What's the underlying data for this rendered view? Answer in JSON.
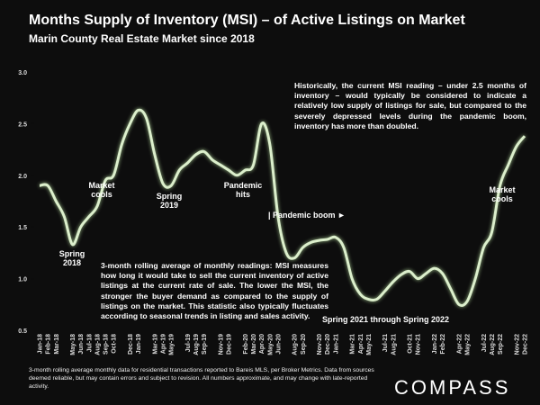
{
  "chart_data": {
    "type": "line",
    "title": "Months Supply of Inventory (MSI) – of Active Listings on Market",
    "subtitle": "Marin County Real Estate Market since 2018",
    "categories": [
      "Jan-18",
      "Feb-18",
      "Mar-18",
      null,
      "May-18",
      "Jun-18",
      "Jul-18",
      "Aug-18",
      "Sep-18",
      "Oct-18",
      null,
      "Dec-18",
      "Jan-19",
      null,
      "Mar-19",
      "Apr-19",
      "May-19",
      null,
      "Jul-19",
      "Aug-19",
      "Sep-19",
      null,
      "Nov-19",
      "Dec-19",
      null,
      "Feb-20",
      "Mar-20",
      "Apr-20",
      "May-20",
      "Jun-20",
      null,
      "Aug-20",
      "Sep-20",
      null,
      "Nov-20",
      "Dec-20",
      "Jan-21",
      null,
      "Mar-21",
      "Apr-21",
      "May-21",
      null,
      "Jul-21",
      "Aug-21",
      null,
      "Oct-21",
      "Nov-21",
      null,
      "Jan-22",
      "Feb-22",
      null,
      "Apr-22",
      "May-22",
      null,
      "Jul-22",
      "Aug-22",
      "Sep-22",
      null,
      "Nov-22",
      "Dec-22"
    ],
    "series": [
      {
        "color": "#dcefcc",
        "values": [
          1.9,
          1.9,
          1.75,
          1.6,
          1.33,
          1.5,
          1.6,
          1.7,
          1.95,
          2.0,
          2.3,
          2.5,
          2.63,
          2.55,
          2.2,
          1.92,
          1.9,
          2.05,
          2.12,
          2.2,
          2.23,
          2.15,
          2.1,
          2.05,
          2.0,
          2.05,
          2.1,
          2.5,
          2.3,
          1.6,
          1.25,
          1.2,
          1.3,
          1.35,
          1.37,
          1.38,
          1.4,
          1.3,
          1.0,
          0.85,
          0.8,
          0.8,
          0.88,
          0.97,
          1.04,
          1.07,
          1.0,
          1.05,
          1.1,
          1.05,
          0.9,
          0.75,
          0.78,
          1.0,
          1.3,
          1.45,
          1.9,
          2.1,
          2.28,
          2.38
        ]
      }
    ],
    "ylim": [
      0.5,
      3.0
    ],
    "yticks": [
      0.5,
      {
        "value": 1.0,
        "label": "1.0"
      },
      1.5,
      {
        "value": 2.0,
        "label": "2.0"
      },
      2.5,
      {
        "value": 3.0,
        "label": "3.0"
      }
    ],
    "annotations": [
      "Market cools",
      "Spring 2018",
      "Spring 2019",
      "Pandemic hits",
      "| Pandemic boom ►",
      "Historically, the current MSI reading – under 2.5 months of inventory – would typically be considered to indicate a relatively low supply of listings for sale, but compared to the severely depressed levels during the pandemic boom, inventory has more than doubled.",
      "3-month rolling average of monthly readings: MSI measures how long it would take to sell the current inventory of active listings at the current rate of sale. The lower the MSI, the stronger the buyer demand as compared to the supply of listings on the market. This statistic also typically fluctuates according to seasonal trends in listing and sales activity.",
      "Spring 2021 through Spring 2022",
      "Market cools"
    ],
    "footnote": "3-month rolling average monthly data for residential transactions reported to Bareis MLS, per Broker Metrics. Data from sources deemed reliable, but may contain errors and subject to revision. All numbers approximate, and may change with late-reported activity.",
    "logo": "COMPASS"
  }
}
